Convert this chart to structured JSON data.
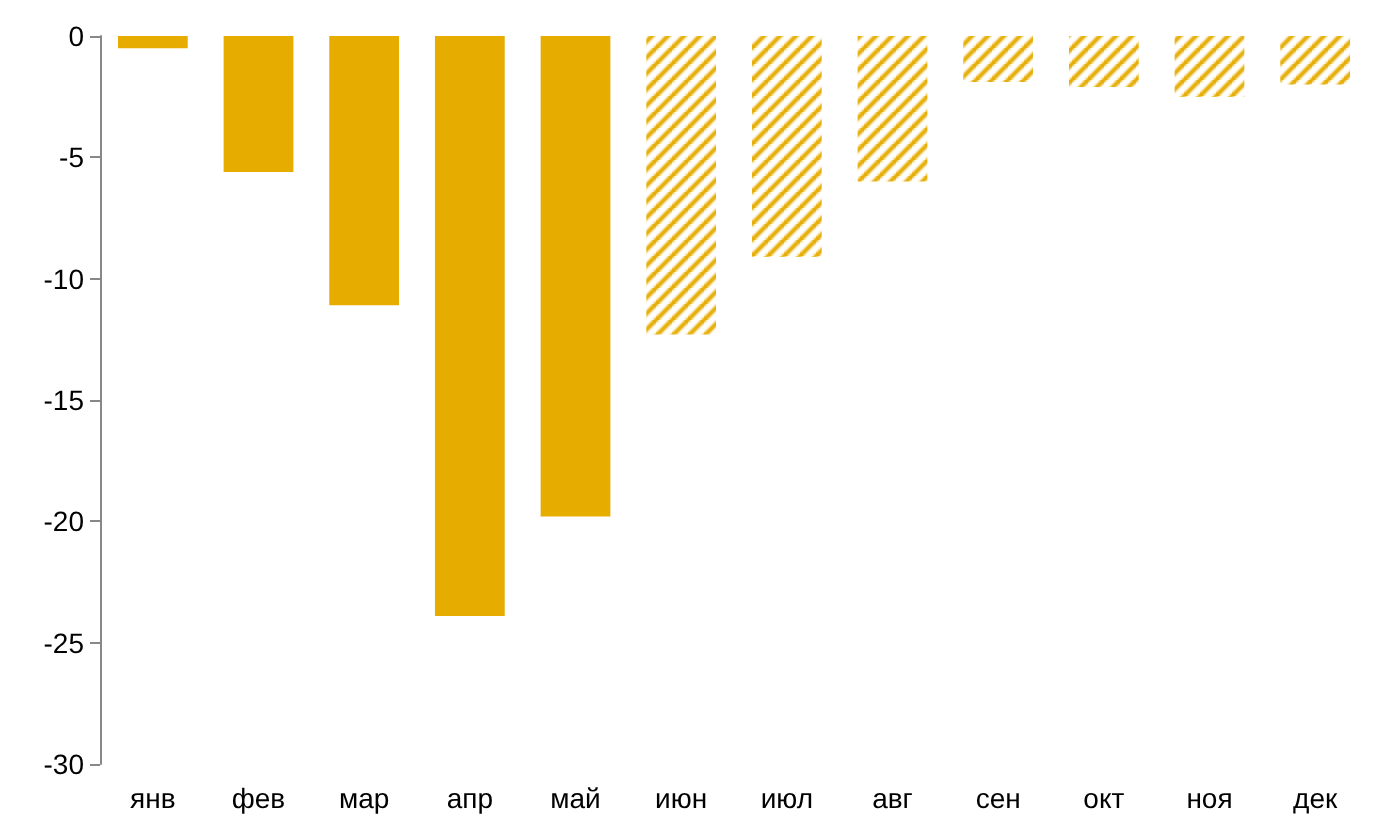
{
  "chart_data": {
    "type": "bar",
    "categories": [
      "янв",
      "фев",
      "мар",
      "апр",
      "май",
      "июн",
      "июл",
      "авг",
      "сен",
      "окт",
      "ноя",
      "дек"
    ],
    "series": [
      {
        "color": "#e6ac00",
        "values": [
          -0.5,
          -5.6,
          -11.1,
          -23.9,
          -19.8,
          null,
          null,
          null,
          null,
          null,
          null,
          null
        ]
      },
      {
        "color": "#e6ac00",
        "values": [
          null,
          null,
          null,
          null,
          null,
          -12.3,
          -9.1,
          -6.0,
          -1.9,
          -2.1,
          -2.5,
          -2.0
        ]
      }
    ],
    "ylim": [
      -30,
      0
    ],
    "yticks": [
      -30,
      -25,
      -20,
      -15,
      -10,
      -5,
      0
    ],
    "grid": false
  }
}
